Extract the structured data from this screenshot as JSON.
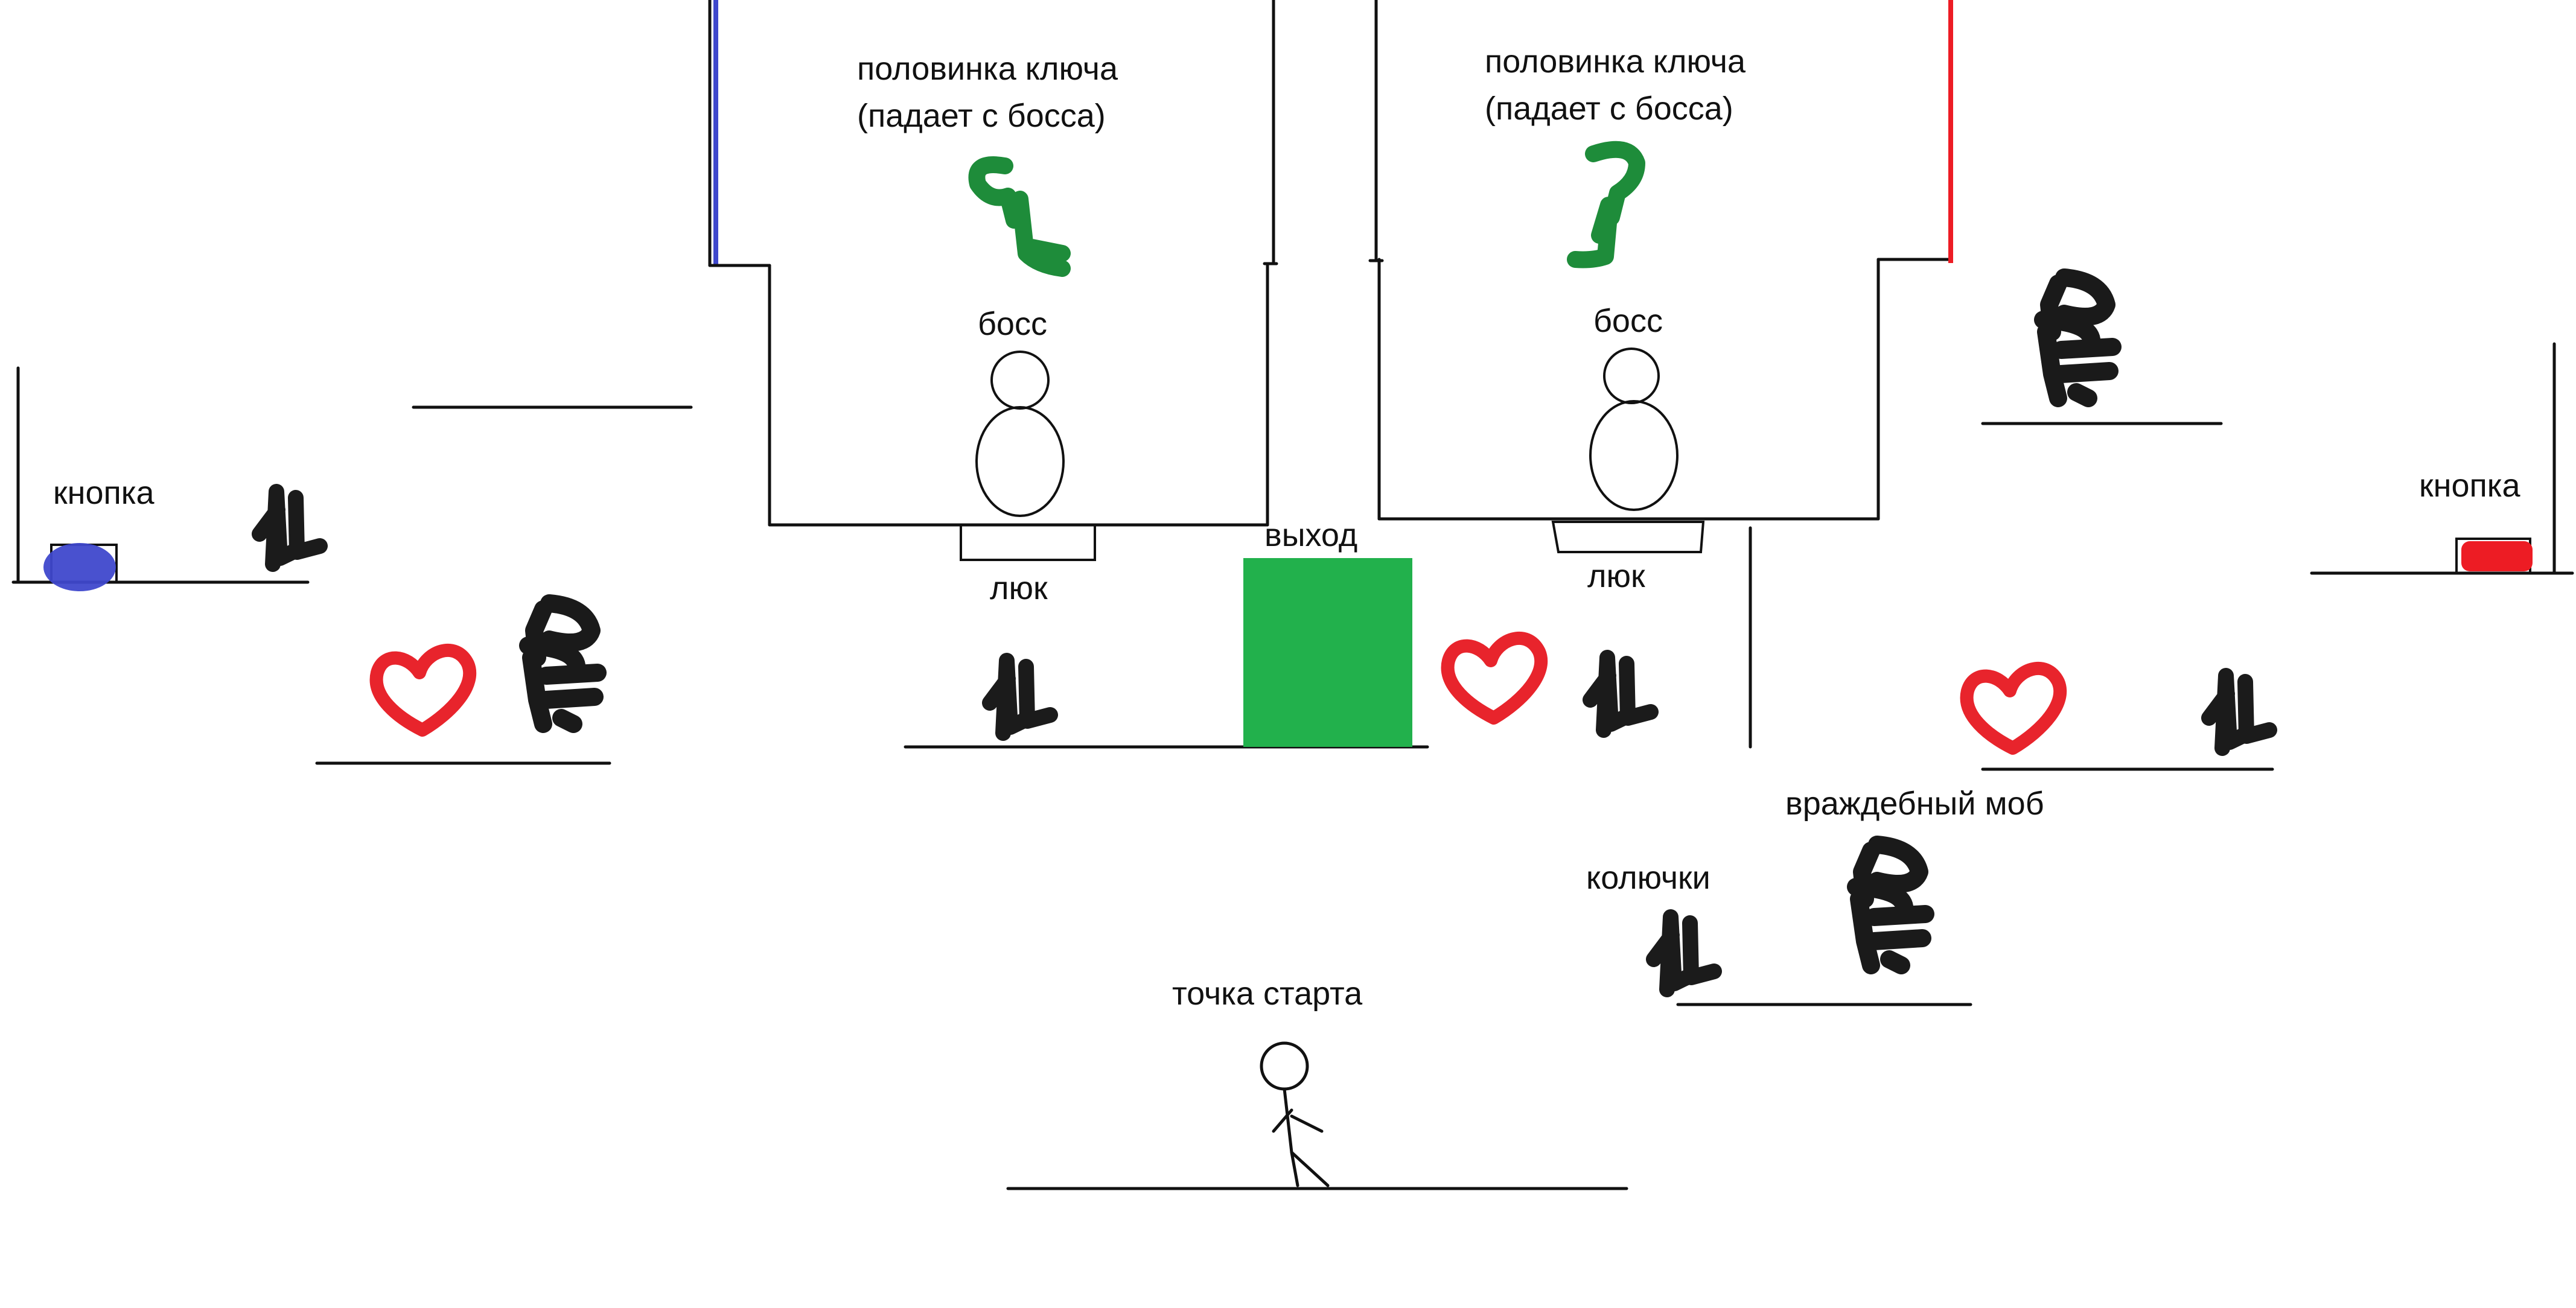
{
  "labels": {
    "key_half_left_line1": "половинка ключа",
    "key_half_left_line2": "(падает с босса)",
    "key_half_right_line1": "половинка ключа",
    "key_half_right_line2": "(падает с босса)",
    "boss_left": "босс",
    "boss_right": "босс",
    "exit": "выход",
    "hatch_left": "люк",
    "hatch_right": "люк",
    "button_left": "кнопка",
    "button_right": "кнопка",
    "hostile_mob": "враждебный моб",
    "spikes": "колючки",
    "start_point": "точка старта"
  },
  "colors": {
    "background": "#ffffff",
    "ink": "#111111",
    "exit_block": "#22b14c",
    "key_green": "#1e8c3a",
    "heart_red": "#e8242c",
    "button_blue": "#3f48cc",
    "button_red": "#ed1c24",
    "door_blue": "#3f48cc",
    "door_red": "#ed1c24"
  },
  "icons": {
    "spikes": "spikes-icon",
    "mob": "hostile-mob-icon",
    "heart": "heart-icon",
    "key_half": "key-half-icon",
    "boss": "boss-snowman-icon",
    "player": "stick-figure-icon"
  }
}
